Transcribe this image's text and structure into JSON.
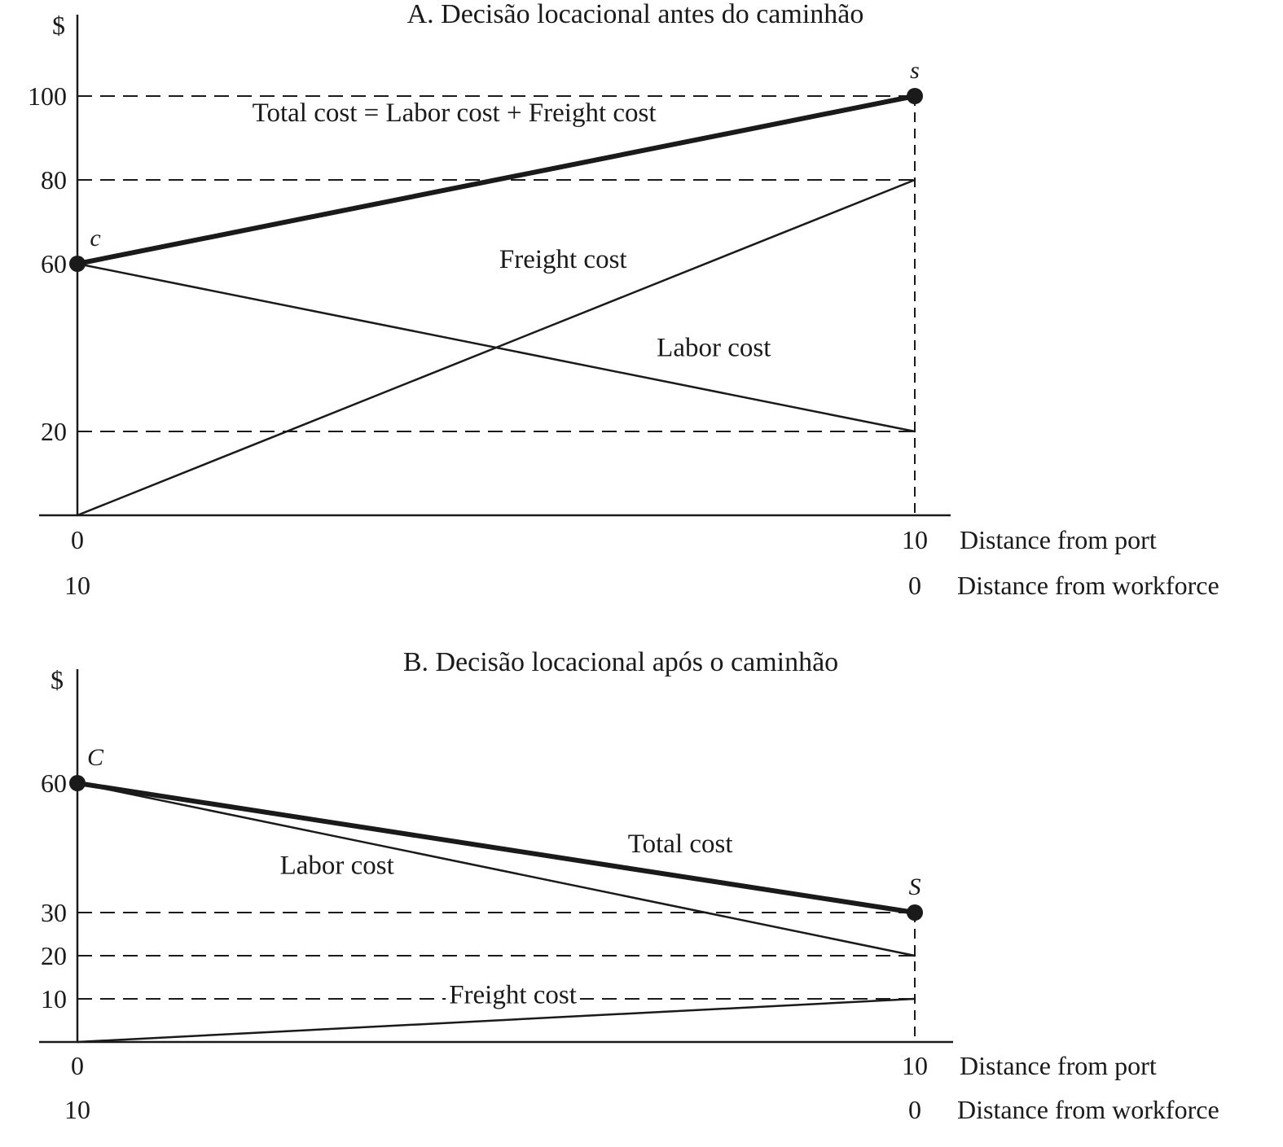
{
  "chart_data": [
    {
      "type": "line",
      "panel": "A",
      "title": "A. Decisão locacional antes do caminhão",
      "ylabel": "$",
      "x_primary_label": "Distance from port",
      "x_secondary_label": "Distance from workforce",
      "x_primary_ticks": [
        "0",
        "10"
      ],
      "x_secondary_ticks": [
        "10",
        "0"
      ],
      "xlim": [
        0,
        10
      ],
      "ylim": [
        0,
        105
      ],
      "y_ticks": [
        20,
        60,
        80,
        100
      ],
      "reference_lines": [
        20,
        80,
        100
      ],
      "series": [
        {
          "name": "Total cost",
          "x": [
            0,
            10
          ],
          "values": [
            60,
            100
          ],
          "emphasis": "bold"
        },
        {
          "name": "Freight cost",
          "x": [
            0,
            10
          ],
          "values": [
            0,
            80
          ]
        },
        {
          "name": "Labor cost",
          "x": [
            0,
            10
          ],
          "values": [
            60,
            20
          ]
        }
      ],
      "curve_labels": [
        {
          "text": "Total cost = Labor cost + Freight cost",
          "x": 4.5,
          "y": 94
        },
        {
          "text": "Freight cost",
          "x": 5.8,
          "y": 59
        },
        {
          "text": "Labor cost",
          "x": 7.6,
          "y": 38
        }
      ],
      "points": [
        {
          "label": "c",
          "x": 0,
          "y": 60
        },
        {
          "label": "s",
          "x": 10,
          "y": 100
        }
      ]
    },
    {
      "type": "line",
      "panel": "B",
      "title": "B. Decisão locacional após o caminhão",
      "ylabel": "$",
      "x_primary_label": "Distance from port",
      "x_secondary_label": "Distance from workforce",
      "x_primary_ticks": [
        "0",
        "10"
      ],
      "x_secondary_ticks": [
        "10",
        "0"
      ],
      "xlim": [
        0,
        10
      ],
      "ylim": [
        0,
        70
      ],
      "y_ticks": [
        10,
        20,
        30,
        60
      ],
      "reference_lines": [
        10,
        20,
        30
      ],
      "series": [
        {
          "name": "Total cost",
          "x": [
            0,
            10
          ],
          "values": [
            60,
            30
          ],
          "emphasis": "bold"
        },
        {
          "name": "Labor cost",
          "x": [
            0,
            10
          ],
          "values": [
            60,
            20
          ]
        },
        {
          "name": "Freight cost",
          "x": [
            0,
            10
          ],
          "values": [
            0,
            10
          ]
        }
      ],
      "curve_labels": [
        {
          "text": "Total cost",
          "x": 7.2,
          "y": 44
        },
        {
          "text": "Labor cost",
          "x": 3.1,
          "y": 39
        },
        {
          "text": "Freight cost",
          "x": 5.2,
          "y": 9
        }
      ],
      "points": [
        {
          "label": "C",
          "x": 0,
          "y": 60
        },
        {
          "label": "S",
          "x": 10,
          "y": 30
        }
      ]
    }
  ]
}
